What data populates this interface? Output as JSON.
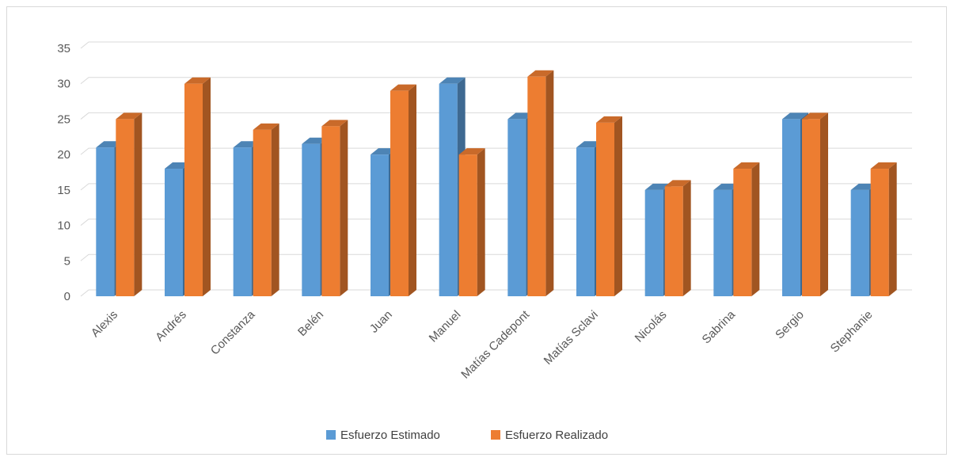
{
  "chart_data": {
    "type": "bar",
    "title": "",
    "xlabel": "",
    "ylabel": "",
    "ylim": [
      0,
      35
    ],
    "yticks": [
      "0",
      "5",
      "10",
      "15",
      "20",
      "25",
      "30",
      "35"
    ],
    "grid": true,
    "three_d": true,
    "legend_position": "bottom",
    "categories": [
      "Alexis",
      "Andrés",
      "Constanza",
      "Belén",
      "Juan",
      "Manuel",
      "Matías Cadepont",
      "Matías Sclavi",
      "Nicolás",
      "Sabrina",
      "Sergio",
      "Stephanie"
    ],
    "series": [
      {
        "name": "Esfuerzo Estimado",
        "color": "#5b9bd5",
        "values": [
          21,
          18,
          21,
          21.5,
          20,
          30,
          25,
          21,
          15,
          15,
          25,
          15
        ]
      },
      {
        "name": "Esfuerzo Realizado",
        "color": "#ed7d31",
        "values": [
          25,
          30,
          23.5,
          24,
          29,
          20,
          31,
          24.5,
          15.5,
          18,
          25,
          18
        ]
      }
    ]
  }
}
